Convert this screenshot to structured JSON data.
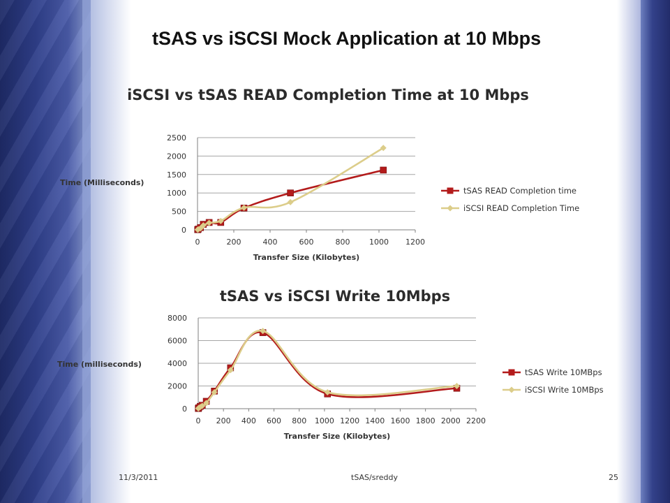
{
  "slide": {
    "title": "tSAS vs iSCSI Mock Application at 10 Mbps",
    "footer_date": "11/3/2011",
    "footer_center": "tSAS/sreddy",
    "page_number": "25",
    "colors": {
      "frame_blue": "#2f3f8a",
      "tsas_series": "#b31b1b",
      "iscsi_series": "#dccd8a"
    }
  },
  "chart_data": [
    {
      "type": "scatter",
      "title": "iSCSI vs tSAS READ Completion Time at 10 Mbps",
      "xlabel": "Transfer Size (Kilobytes)",
      "ylabel": "Time (Milliseconds)",
      "xlim": [
        0,
        1200
      ],
      "ylim": [
        0,
        2500
      ],
      "x_ticks": [
        0,
        200,
        400,
        600,
        800,
        1000,
        1200
      ],
      "y_ticks": [
        0,
        500,
        1000,
        1500,
        2000,
        2500
      ],
      "grid": "horizontal",
      "legend": "right",
      "series": [
        {
          "name": "tSAS READ Completion time",
          "marker": "square",
          "color": "#b31b1b",
          "x": [
            1,
            4,
            16,
            32,
            64,
            128,
            256,
            512,
            1024
          ],
          "y": [
            5,
            20,
            60,
            150,
            200,
            200,
            590,
            1000,
            1620
          ]
        },
        {
          "name": "iSCSI READ Completion Time",
          "marker": "diamond",
          "color": "#dccd8a",
          "x": [
            1,
            4,
            16,
            32,
            64,
            128,
            256,
            512,
            1024
          ],
          "y": [
            5,
            15,
            40,
            120,
            190,
            240,
            600,
            750,
            2220
          ]
        }
      ]
    },
    {
      "type": "scatter",
      "title": "tSAS vs iSCSI Write 10Mbps",
      "xlabel": "Transfer Size (Kilobytes)",
      "ylabel": "Time (milliseconds)",
      "xlim": [
        0,
        2200
      ],
      "ylim": [
        0,
        8000
      ],
      "x_ticks": [
        0,
        200,
        400,
        600,
        800,
        1000,
        1200,
        1400,
        1600,
        1800,
        2000,
        2200
      ],
      "y_ticks": [
        0,
        2000,
        4000,
        6000,
        8000
      ],
      "grid": "horizontal",
      "legend": "right",
      "series": [
        {
          "name": "tSAS Write 10MBps",
          "marker": "square",
          "color": "#b31b1b",
          "x": [
            1,
            4,
            16,
            32,
            64,
            128,
            256,
            512,
            1024,
            2048
          ],
          "y": [
            20,
            80,
            200,
            300,
            650,
            1550,
            3600,
            6700,
            1300,
            1800
          ]
        },
        {
          "name": "iSCSI Write 10MBps",
          "marker": "diamond",
          "color": "#dccd8a",
          "x": [
            1,
            4,
            16,
            32,
            64,
            128,
            256,
            512,
            1024,
            2048
          ],
          "y": [
            20,
            60,
            150,
            250,
            500,
            1450,
            3400,
            6850,
            1450,
            2000
          ]
        }
      ]
    }
  ]
}
